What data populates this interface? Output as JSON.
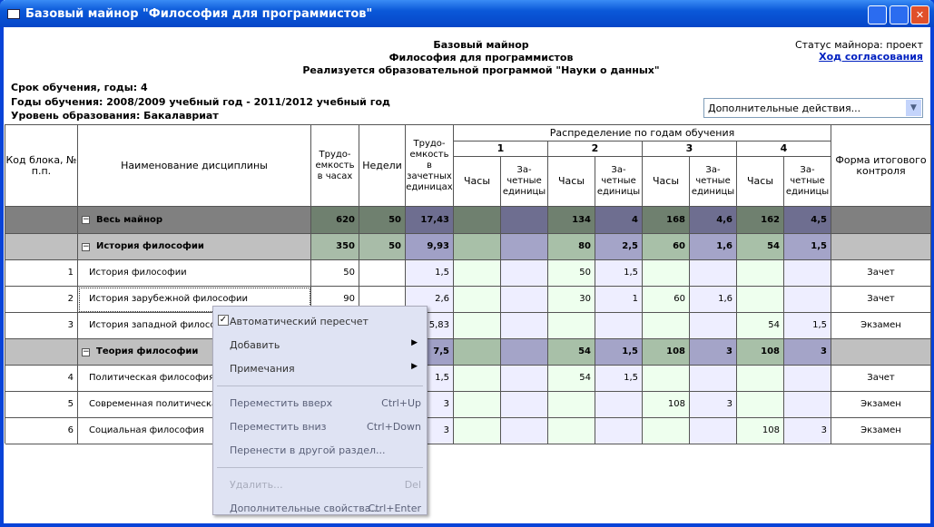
{
  "window": {
    "title": "Базовый майнор \"Философия для программистов\""
  },
  "header": {
    "lines": [
      "Базовый майнор",
      "Философия для программистов",
      "Реализуется образовательной программой \"Науки о данных\""
    ],
    "status": "Статус майнора: проект",
    "link": "Ход согласования"
  },
  "info": [
    "Срок обучения, годы: 4",
    "Годы обучения: 2008/2009 учебный год - 2011/2012 учебный год",
    "Уровень образования: Бакалавриат"
  ],
  "dropdown": "Дополнительные действия...",
  "table": {
    "head": {
      "code": "Код блока, № п.п.",
      "name": "Наименование дисциплины",
      "hours": "Трудо-емкость в часах",
      "weeks": "Недели",
      "credits": "Трудо-емкость в зачетных единицах",
      "distribution": "Распределение по годам обучения",
      "years": [
        "1",
        "2",
        "3",
        "4"
      ],
      "sub_hours": "Часы",
      "sub_credits": "За-четные единицы",
      "form": "Форма итогового контроля"
    },
    "rows": [
      {
        "kind": "total",
        "cells": [
          null,
          "Весь майнор",
          620,
          50,
          "17,43",
          null,
          null,
          134,
          4,
          168,
          "4,6",
          162,
          "4,5",
          null
        ]
      },
      {
        "kind": "section",
        "cells": [
          null,
          "История философии",
          350,
          50,
          "9,93",
          null,
          null,
          80,
          "2,5",
          60,
          "1,6",
          54,
          "1,5",
          null
        ]
      },
      {
        "kind": "item",
        "cells": [
          1,
          "История философии",
          50,
          null,
          "1,5",
          null,
          null,
          50,
          "1,5",
          null,
          null,
          null,
          null,
          "Зачет"
        ]
      },
      {
        "kind": "item",
        "cells": [
          2,
          "История зарубежной философии",
          90,
          null,
          "2,6",
          null,
          null,
          30,
          1,
          60,
          "1,6",
          null,
          null,
          "Зачет"
        ]
      },
      {
        "kind": "item",
        "cells": [
          3,
          "История западной филосо",
          null,
          null,
          "5,83",
          null,
          null,
          null,
          null,
          null,
          null,
          54,
          "1,5",
          "Экзамен"
        ]
      },
      {
        "kind": "section",
        "cells": [
          null,
          "Теория философии",
          null,
          null,
          "7,5",
          null,
          null,
          54,
          "1,5",
          108,
          3,
          108,
          3,
          null
        ]
      },
      {
        "kind": "item",
        "cells": [
          4,
          "Политическая философия",
          null,
          null,
          "1,5",
          null,
          null,
          54,
          "1,5",
          null,
          null,
          null,
          null,
          "Зачет"
        ]
      },
      {
        "kind": "item",
        "cells": [
          5,
          "Современная политическа",
          null,
          null,
          "3",
          null,
          null,
          null,
          null,
          108,
          3,
          null,
          null,
          "Экзамен"
        ]
      },
      {
        "kind": "item",
        "cells": [
          6,
          "Социальная философия",
          null,
          null,
          "3",
          null,
          null,
          null,
          null,
          null,
          null,
          108,
          3,
          "Экзамен"
        ]
      }
    ]
  },
  "menu": [
    {
      "label": "Автоматический пересчет",
      "checked": true
    },
    {
      "label": "Добавить",
      "submenu": true
    },
    {
      "label": "Примечания",
      "submenu": true
    },
    {
      "label": "Переместить вверх",
      "shortcut": "Ctrl+Up",
      "separator_before": true,
      "dim": true
    },
    {
      "label": "Переместить вниз",
      "shortcut": "Ctrl+Down",
      "dim": true
    },
    {
      "label": "Перенести в другой раздел...",
      "dim": true
    },
    {
      "label": "Удалить...",
      "shortcut": "Del",
      "separator_before": true,
      "disabled": true
    },
    {
      "label": "Дополнительные свойства...",
      "shortcut": "Ctrl+Enter",
      "dim": true
    }
  ]
}
